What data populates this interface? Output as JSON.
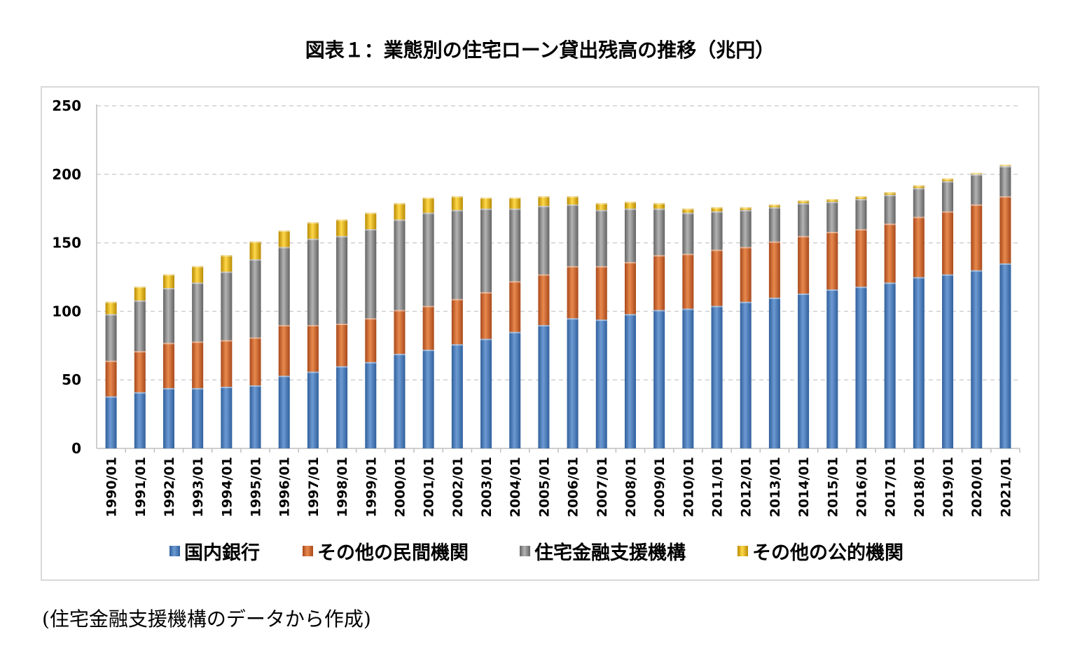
{
  "chart_data": {
    "type": "bar",
    "stacked": true,
    "title": "図表１：業態別の住宅ローン貸出残高の推移（兆円）",
    "xlabel": "",
    "ylabel": "",
    "ylim": [
      0,
      250
    ],
    "yticks": [
      0,
      50,
      100,
      150,
      200,
      250
    ],
    "grid": true,
    "legend_position": "bottom",
    "categories": [
      "1990/01",
      "1991/01",
      "1992/01",
      "1993/01",
      "1994/01",
      "1995/01",
      "1996/01",
      "1997/01",
      "1998/01",
      "1999/01",
      "2000/01",
      "2001/01",
      "2002/01",
      "2003/01",
      "2004/01",
      "2005/01",
      "2006/01",
      "2007/01",
      "2008/01",
      "2009/01",
      "2010/01",
      "2011/01",
      "2012/01",
      "2013/01",
      "2014/01",
      "2015/01",
      "2016/01",
      "2017/01",
      "2018/01",
      "2019/01",
      "2020/01",
      "2021/01"
    ],
    "series": [
      {
        "name": "国内銀行",
        "color": "#4a7ebb",
        "values": [
          38,
          41,
          44,
          44,
          45,
          46,
          53,
          56,
          60,
          63,
          69,
          72,
          76,
          80,
          85,
          90,
          95,
          94,
          98,
          101,
          102,
          104,
          107,
          110,
          113,
          116,
          118,
          121,
          125,
          127,
          130,
          135
        ]
      },
      {
        "name": "その他の民間機関",
        "color": "#d4662a",
        "values": [
          26,
          30,
          33,
          34,
          34,
          35,
          37,
          34,
          31,
          32,
          32,
          32,
          33,
          34,
          37,
          37,
          38,
          39,
          38,
          40,
          40,
          41,
          40,
          41,
          42,
          42,
          42,
          43,
          44,
          46,
          48,
          49
        ]
      },
      {
        "name": "住宅金融支援機構",
        "color": "#8c8c8c",
        "values": [
          34,
          37,
          40,
          43,
          50,
          57,
          57,
          63,
          64,
          65,
          66,
          68,
          65,
          61,
          53,
          50,
          45,
          41,
          39,
          34,
          30,
          28,
          27,
          25,
          24,
          22,
          22,
          21,
          21,
          22,
          22,
          22
        ]
      },
      {
        "name": "その他の公的機関",
        "color": "#e8b80b",
        "values": [
          9,
          10,
          10,
          12,
          12,
          13,
          12,
          12,
          12,
          12,
          12,
          11,
          10,
          8,
          8,
          7,
          6,
          5,
          5,
          4,
          3,
          3,
          2,
          2,
          2,
          2,
          2,
          2,
          2,
          2,
          1,
          1
        ]
      }
    ]
  },
  "source_note": "(住宅金融支援機構のデータから作成)"
}
